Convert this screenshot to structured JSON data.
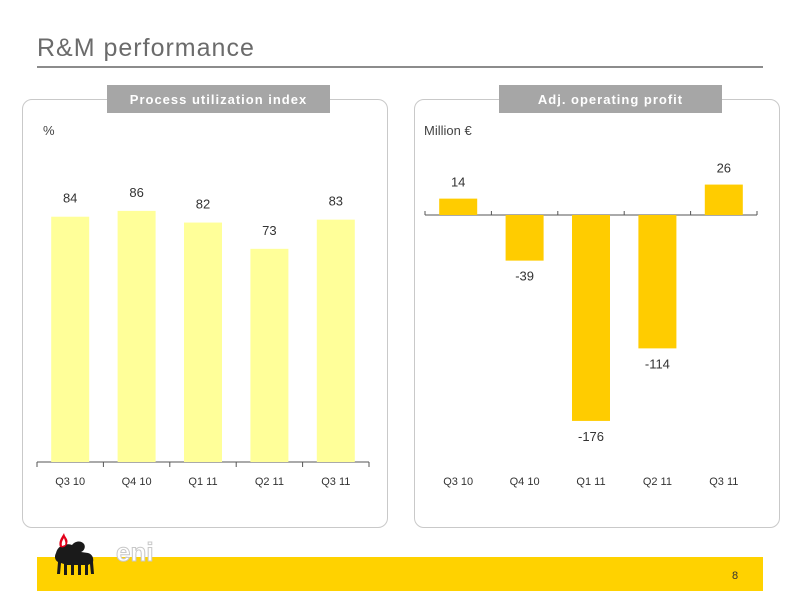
{
  "slide": {
    "title": "R&M performance",
    "page_number": "8"
  },
  "logo": {
    "brand": "eni",
    "icon": "six-legged-dog-logo"
  },
  "colors": {
    "light_bar": "#ffff99",
    "dark_bar": "#ffcc00",
    "band": "#ffd200",
    "header": "#a6a6a6"
  },
  "chart_data": [
    {
      "type": "bar",
      "title": "Process utilization index",
      "unit": "%",
      "categories": [
        "Q3 10",
        "Q4 10",
        "Q1 11",
        "Q2 11",
        "Q3 11"
      ],
      "values": [
        84,
        86,
        82,
        73,
        83
      ],
      "ylim": [
        0,
        100
      ]
    },
    {
      "type": "bar",
      "title": "Adj. operating profit",
      "unit": "Million €",
      "categories": [
        "Q3 10",
        "Q4 10",
        "Q1 11",
        "Q2 11",
        "Q3 11"
      ],
      "values": [
        14,
        -39,
        -176,
        -114,
        26
      ],
      "ylim": [
        -180,
        30
      ]
    }
  ]
}
